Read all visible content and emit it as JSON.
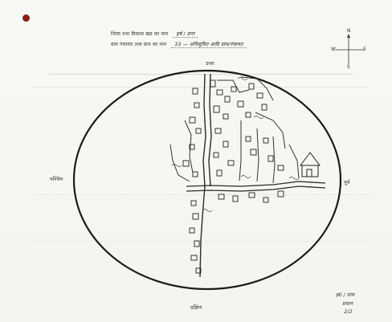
{
  "document": {
    "header_line_1_label": "जिला तथा विकास खंड का नाम",
    "header_line_1_value": "हर्ष / डगर",
    "header_line_2_label": "ग्राम पंचायत तथा ग्राम का नाम",
    "header_line_2_value": "33 — अधिसूचित आदि ग्राम/पंचायत"
  },
  "compass": {
    "north": "N",
    "south": "S",
    "east": "E",
    "west": "W"
  },
  "directions": {
    "top": "उत्तर",
    "bottom": "दक्षिण",
    "left": "पश्चिम",
    "right": "पूर्व"
  },
  "signature": {
    "line1": "ह0 / ग्राम",
    "line2": "प्रधान",
    "line3": "2/2"
  },
  "colors": {
    "ink": "#222222",
    "paper": "#f8f8f5",
    "dot": "#8a1f1a"
  }
}
